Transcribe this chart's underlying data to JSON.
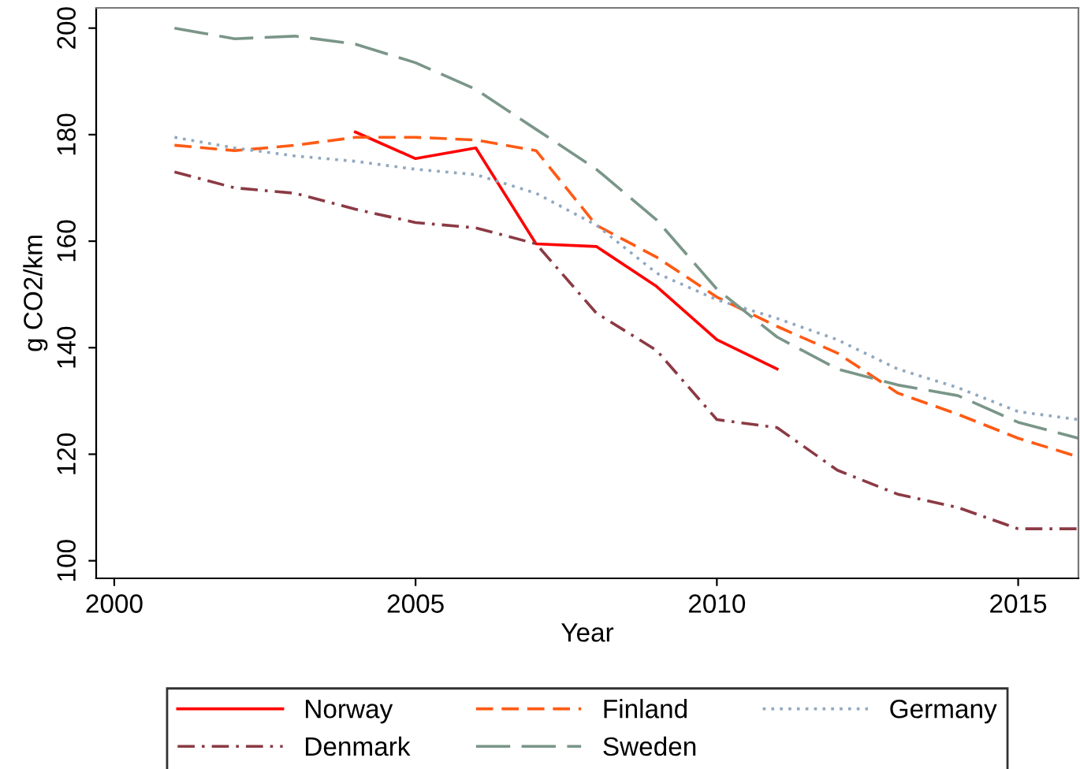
{
  "chart_data": {
    "type": "line",
    "xlabel": "Year",
    "ylabel": "g CO2/km",
    "xlim": [
      1999.7,
      2016
    ],
    "xticks": [
      2000,
      2005,
      2010,
      2015
    ],
    "ylim": [
      96.7,
      203.8
    ],
    "yticks": [
      100,
      120,
      140,
      160,
      180,
      200
    ],
    "grid": false,
    "legend": "bottom",
    "series": [
      {
        "name": "Norway",
        "color": "#ff0000",
        "line_style": "solid",
        "x": [
          2004,
          2005,
          2006,
          2007,
          2008,
          2009,
          2010,
          2011
        ],
        "values": [
          180.5,
          175.5,
          177.5,
          159.5,
          159,
          151.5,
          141.5,
          136
        ]
      },
      {
        "name": "Finland",
        "color": "#ff5a14",
        "line_style": "dashed",
        "x": [
          2001,
          2002,
          2003,
          2004,
          2005,
          2006,
          2007,
          2008,
          2009,
          2010,
          2011,
          2012,
          2013,
          2014,
          2015,
          2016
        ],
        "values": [
          178,
          177,
          178,
          179.5,
          179.5,
          179,
          177,
          163,
          157,
          149.5,
          144,
          139,
          131.5,
          127.5,
          123,
          119.5
        ]
      },
      {
        "name": "Germany",
        "color": "#90a8c0",
        "line_style": "dotted",
        "x": [
          2001,
          2002,
          2003,
          2004,
          2005,
          2006,
          2007,
          2008,
          2009,
          2010,
          2011,
          2012,
          2013,
          2014,
          2015,
          2016
        ],
        "values": [
          179.5,
          177.5,
          176,
          175,
          173.5,
          172.5,
          169,
          163,
          154,
          149,
          145.5,
          141.5,
          136,
          132.5,
          128,
          126.5
        ]
      },
      {
        "name": "Denmark",
        "color": "#8b3a44",
        "line_style": "dashdot",
        "x": [
          2001,
          2002,
          2003,
          2004,
          2005,
          2006,
          2007,
          2008,
          2009,
          2010,
          2011,
          2012,
          2013,
          2014,
          2015,
          2016
        ],
        "values": [
          173,
          170,
          169,
          166,
          163.5,
          162.5,
          159.5,
          146.5,
          139.5,
          126.5,
          125,
          117,
          112.5,
          110,
          106,
          106
        ]
      },
      {
        "name": "Sweden",
        "color": "#7a9688",
        "line_style": "longdash",
        "x": [
          2001,
          2002,
          2003,
          2004,
          2005,
          2006,
          2007,
          2008,
          2009,
          2010,
          2011,
          2012,
          2013,
          2014,
          2015,
          2016
        ],
        "values": [
          200,
          198,
          198.5,
          197,
          193.5,
          188.5,
          181,
          173.5,
          164,
          151,
          142,
          136,
          133,
          131,
          126,
          123
        ]
      }
    ]
  }
}
